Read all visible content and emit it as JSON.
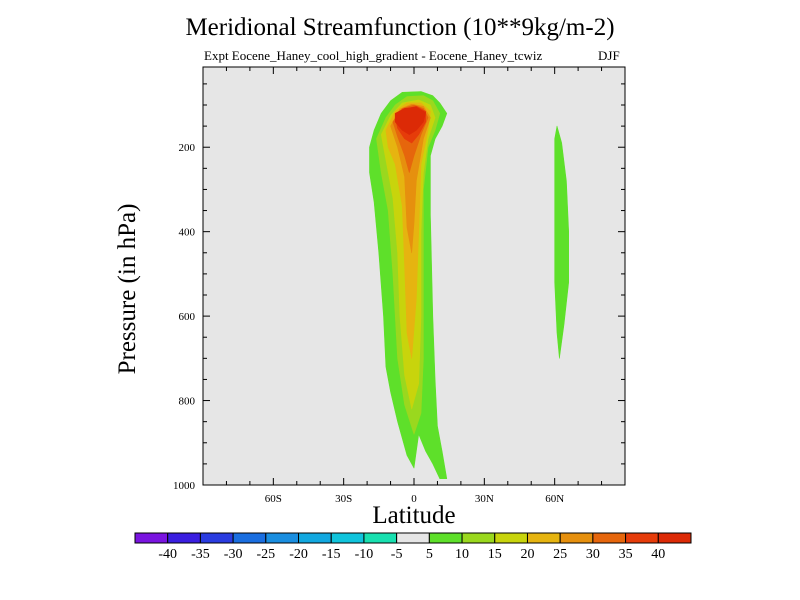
{
  "chart_data": {
    "type": "contour",
    "title": "Meridional Streamfunction (10**9kg/m-2)",
    "subtitle": "Expt Eocene_Haney_cool_high_gradient - Eocene_Haney_tcwiz",
    "season": "DJF",
    "xlabel": "Latitude",
    "ylabel": "Pressure (in hPa)",
    "xlim": [
      -90,
      90
    ],
    "ylim": [
      1000,
      10
    ],
    "y_reversed": true,
    "x_ticks": [
      {
        "value": -60,
        "label": "60S"
      },
      {
        "value": -30,
        "label": "30S"
      },
      {
        "value": 0,
        "label": "0"
      },
      {
        "value": 30,
        "label": "30N"
      },
      {
        "value": 60,
        "label": "60N"
      }
    ],
    "y_ticks": [
      {
        "value": 200,
        "label": "200"
      },
      {
        "value": 400,
        "label": "400"
      },
      {
        "value": 600,
        "label": "600"
      },
      {
        "value": 800,
        "label": "800"
      },
      {
        "value": 1000,
        "label": "1000"
      }
    ],
    "colorbar": {
      "labels": [
        "-40",
        "-35",
        "-30",
        "-25",
        "-20",
        "-15",
        "-10",
        "-5",
        "5",
        "10",
        "15",
        "20",
        "25",
        "30",
        "35",
        "40"
      ],
      "colors": [
        "#7a14e0",
        "#3a1ee0",
        "#2a3ce0",
        "#1a6ee0",
        "#1a8ee0",
        "#12a8e0",
        "#10c4dc",
        "#18e0b0",
        "#e6e6e6",
        "#5ee02a",
        "#9ad81e",
        "#c8d40c",
        "#e6b410",
        "#e6900e",
        "#e6660c",
        "#e63c0a",
        "#dc2a06"
      ]
    },
    "contour_regions": [
      {
        "color": "#5ee02a",
        "points": [
          [
            -19,
            200
          ],
          [
            -17,
            160
          ],
          [
            -14,
            120
          ],
          [
            -10,
            90
          ],
          [
            -5,
            70
          ],
          [
            3,
            68
          ],
          [
            8,
            78
          ],
          [
            11,
            95
          ],
          [
            14,
            120
          ],
          [
            12,
            150
          ],
          [
            9,
            180
          ],
          [
            7,
            220
          ],
          [
            7,
            360
          ],
          [
            8,
            600
          ],
          [
            9,
            750
          ],
          [
            10,
            860
          ],
          [
            12,
            920
          ],
          [
            14,
            985
          ],
          [
            11,
            985
          ],
          [
            8,
            950
          ],
          [
            5,
            920
          ],
          [
            2,
            880
          ],
          [
            0,
            960
          ],
          [
            -3,
            930
          ],
          [
            -7,
            850
          ],
          [
            -10,
            780
          ],
          [
            -12,
            720
          ],
          [
            -13,
            600
          ],
          [
            -15,
            450
          ],
          [
            -17,
            330
          ],
          [
            -19,
            260
          ]
        ]
      },
      {
        "color": "#9ad81e",
        "points": [
          [
            -16,
            180
          ],
          [
            -12,
            130
          ],
          [
            -8,
            100
          ],
          [
            -3,
            80
          ],
          [
            4,
            78
          ],
          [
            8,
            90
          ],
          [
            11,
            120
          ],
          [
            9,
            160
          ],
          [
            6,
            200
          ],
          [
            4,
            300
          ],
          [
            4,
            500
          ],
          [
            4,
            700
          ],
          [
            3,
            830
          ],
          [
            0,
            880
          ],
          [
            -4,
            810
          ],
          [
            -7,
            700
          ],
          [
            -9,
            500
          ],
          [
            -11,
            350
          ],
          [
            -14,
            260
          ]
        ]
      },
      {
        "color": "#c8d40c",
        "points": [
          [
            -14,
            170
          ],
          [
            -10,
            125
          ],
          [
            -5,
            95
          ],
          [
            2,
            88
          ],
          [
            7,
            100
          ],
          [
            9,
            130
          ],
          [
            6,
            180
          ],
          [
            4,
            260
          ],
          [
            3,
            400
          ],
          [
            3,
            600
          ],
          [
            2,
            760
          ],
          [
            -1,
            820
          ],
          [
            -4,
            740
          ],
          [
            -6,
            600
          ],
          [
            -7,
            450
          ],
          [
            -9,
            320
          ],
          [
            -12,
            230
          ]
        ]
      },
      {
        "color": "#e6b410",
        "points": [
          [
            -12,
            160
          ],
          [
            -8,
            115
          ],
          [
            -3,
            95
          ],
          [
            3,
            95
          ],
          [
            7,
            115
          ],
          [
            6,
            160
          ],
          [
            3,
            240
          ],
          [
            2,
            400
          ],
          [
            1,
            560
          ],
          [
            -1,
            700
          ],
          [
            -3,
            640
          ],
          [
            -4,
            480
          ],
          [
            -5,
            340
          ],
          [
            -8,
            240
          ],
          [
            -11,
            200
          ]
        ]
      },
      {
        "color": "#e6900e",
        "points": [
          [
            -10,
            150
          ],
          [
            -6,
            110
          ],
          [
            -1,
            98
          ],
          [
            4,
            103
          ],
          [
            7,
            130
          ],
          [
            4,
            180
          ],
          [
            1,
            280
          ],
          [
            0,
            380
          ],
          [
            -1,
            450
          ],
          [
            -3,
            390
          ],
          [
            -4,
            270
          ],
          [
            -7,
            200
          ]
        ]
      },
      {
        "color": "#e6660c",
        "points": [
          [
            -9,
            140
          ],
          [
            -5,
            108
          ],
          [
            0,
            100
          ],
          [
            4,
            108
          ],
          [
            6,
            130
          ],
          [
            3,
            170
          ],
          [
            0,
            220
          ],
          [
            -2,
            260
          ],
          [
            -4,
            220
          ],
          [
            -7,
            175
          ]
        ]
      },
      {
        "color": "#e63c0a",
        "points": [
          [
            -8,
            130
          ],
          [
            -4,
            110
          ],
          [
            1,
            103
          ],
          [
            5,
            115
          ],
          [
            5,
            140
          ],
          [
            2,
            170
          ],
          [
            -1,
            190
          ],
          [
            -4,
            180
          ],
          [
            -7,
            155
          ]
        ]
      },
      {
        "color": "#dc2a06",
        "points": [
          [
            -8,
            120
          ],
          [
            -4,
            108
          ],
          [
            1,
            105
          ],
          [
            5,
            118
          ],
          [
            4,
            140
          ],
          [
            1,
            160
          ],
          [
            -2,
            170
          ],
          [
            -5,
            160
          ],
          [
            -8,
            140
          ]
        ]
      },
      {
        "color": "#5ee02a",
        "points": [
          [
            61,
            150
          ],
          [
            63,
            190
          ],
          [
            65,
            280
          ],
          [
            66,
            400
          ],
          [
            66,
            520
          ],
          [
            64,
            620
          ],
          [
            62,
            700
          ],
          [
            61,
            640
          ],
          [
            60,
            520
          ],
          [
            60,
            400
          ],
          [
            60,
            260
          ],
          [
            60,
            180
          ]
        ]
      }
    ]
  }
}
